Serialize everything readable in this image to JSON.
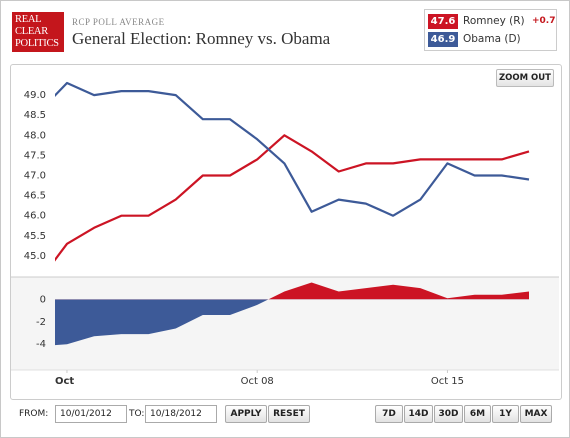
{
  "header": {
    "logo": [
      "REAL",
      "CLEAR",
      "POLITICS"
    ],
    "kicker": "RCP POLL AVERAGE",
    "title": "General Election: Romney vs. Obama"
  },
  "legend": [
    {
      "value": 47.6,
      "name": "Romney (R)",
      "change": {
        "value": 0.7,
        "label": "+0.7"
      },
      "color": "#cc1424"
    },
    {
      "value": 46.9,
      "name": "Obama (D)",
      "color": "#3d5a98"
    }
  ],
  "zoom_button": "ZOOM OUT",
  "controls": {
    "from_label": "FROM:",
    "from_value": "10/01/2012",
    "to_label": "TO:",
    "to_value": "10/18/2012",
    "apply": "APPLY",
    "reset": "RESET",
    "ranges": [
      "7D",
      "14D",
      "30D",
      "6M",
      "1Y",
      "MAX"
    ]
  },
  "chart_data": [
    {
      "type": "line",
      "x": [
        0,
        1,
        2,
        3,
        4,
        5,
        6,
        7,
        8,
        9,
        10,
        11,
        12,
        13,
        14,
        15,
        16,
        17,
        18
      ],
      "xlim": [
        0.56,
        18.59
      ],
      "xticks": [
        {
          "value": 1,
          "label": "Oct"
        },
        {
          "value": 8,
          "label": "Oct 08"
        },
        {
          "value": 15,
          "label": "Oct 15"
        }
      ],
      "ylim": [
        44.5,
        49.5
      ],
      "yticks": [
        {
          "value": 45,
          "label": "45.0"
        },
        {
          "value": 45.5,
          "label": "45.5"
        },
        {
          "value": 46,
          "label": "46.0"
        },
        {
          "value": 46.5,
          "label": "46.5"
        },
        {
          "value": 47,
          "label": "47.0"
        },
        {
          "value": 47.5,
          "label": "47.5"
        },
        {
          "value": 48,
          "label": "48.0"
        },
        {
          "value": 48.5,
          "label": "48.5"
        },
        {
          "value": 49,
          "label": "49.0"
        }
      ],
      "series": [
        {
          "name": "Romney (R)",
          "color": "#cc1424",
          "values": [
            44.4,
            45.3,
            45.7,
            46.0,
            46.0,
            46.4,
            47.0,
            47.0,
            47.4,
            48.0,
            47.6,
            47.1,
            47.3,
            47.3,
            47.4,
            47.4,
            47.4,
            47.4,
            47.6
          ]
        },
        {
          "name": "Obama (D)",
          "color": "#3d5a98",
          "values": [
            48.6,
            49.3,
            49.0,
            49.1,
            49.1,
            49.0,
            48.4,
            48.4,
            47.9,
            47.3,
            46.1,
            46.4,
            46.3,
            46.0,
            46.4,
            47.3,
            47.0,
            47.0,
            46.9
          ]
        }
      ]
    },
    {
      "type": "area",
      "x": [
        0,
        1,
        2,
        3,
        4,
        5,
        6,
        7,
        8,
        9,
        10,
        11,
        12,
        13,
        14,
        15,
        16,
        17,
        18
      ],
      "xlim": [
        0.56,
        18.59
      ],
      "ylim": [
        -6.3,
        1.9
      ],
      "yticks": [
        0,
        -2,
        -4
      ],
      "positive_color": "#cc1424",
      "negative_color": "#3d5a98",
      "values": [
        -4.2,
        -4.0,
        -3.3,
        -3.1,
        -3.1,
        -2.6,
        -1.4,
        -1.4,
        -0.5,
        0.7,
        1.5,
        0.7,
        1.0,
        1.3,
        1.0,
        0.1,
        0.4,
        0.4,
        0.7
      ]
    }
  ]
}
